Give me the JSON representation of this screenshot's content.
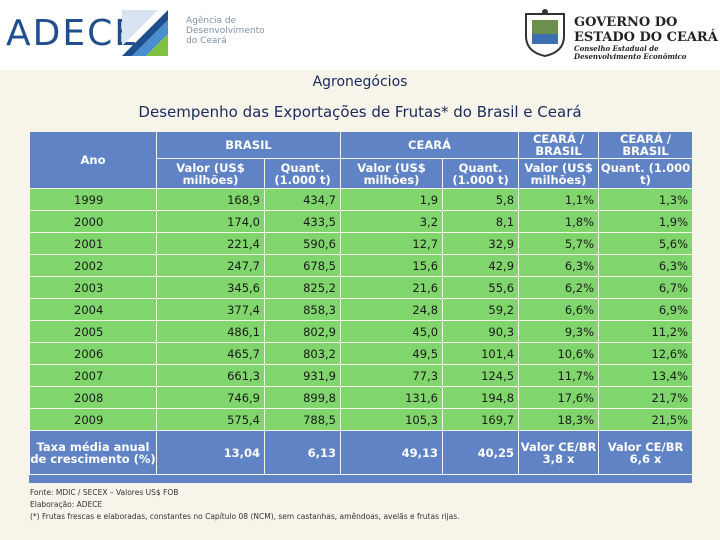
{
  "header": {
    "adece_logo": "ADECE",
    "adece_subtitle": [
      "Agência de",
      "Desenvolvimento",
      "do Ceará"
    ],
    "gov_title_line1": "GOVERNO DO",
    "gov_title_line2": "ESTADO DO CEARÁ",
    "gov_subtitle_line1": "Conselho Estadual de",
    "gov_subtitle_line2": "Desenvolvimento Econômico"
  },
  "section_title": "Agronegócios",
  "main_title": "Desempenho das Exportações de Frutas* do Brasil e Ceará",
  "table": {
    "col_ano": "Ano",
    "group_brasil": "BRASIL",
    "group_ceara": "CEARÁ",
    "group_ce_br_1": "CEARÁ / BRASIL",
    "group_ce_br_2": "CEARÁ / BRASIL",
    "sub_valor": "Valor (US$ milhões)",
    "sub_quant": "Quant. (1.000 t)",
    "rows": [
      {
        "ano": "1999",
        "br_valor": "168,9",
        "br_quant": "434,7",
        "ce_valor": "1,9",
        "ce_quant": "5,8",
        "r_valor": "1,1%",
        "r_quant": "1,3%"
      },
      {
        "ano": "2000",
        "br_valor": "174,0",
        "br_quant": "433,5",
        "ce_valor": "3,2",
        "ce_quant": "8,1",
        "r_valor": "1,8%",
        "r_quant": "1,9%"
      },
      {
        "ano": "2001",
        "br_valor": "221,4",
        "br_quant": "590,6",
        "ce_valor": "12,7",
        "ce_quant": "32,9",
        "r_valor": "5,7%",
        "r_quant": "5,6%"
      },
      {
        "ano": "2002",
        "br_valor": "247,7",
        "br_quant": "678,5",
        "ce_valor": "15,6",
        "ce_quant": "42,9",
        "r_valor": "6,3%",
        "r_quant": "6,3%"
      },
      {
        "ano": "2003",
        "br_valor": "345,6",
        "br_quant": "825,2",
        "ce_valor": "21,6",
        "ce_quant": "55,6",
        "r_valor": "6,2%",
        "r_quant": "6,7%"
      },
      {
        "ano": "2004",
        "br_valor": "377,4",
        "br_quant": "858,3",
        "ce_valor": "24,8",
        "ce_quant": "59,2",
        "r_valor": "6,6%",
        "r_quant": "6,9%"
      },
      {
        "ano": "2005",
        "br_valor": "486,1",
        "br_quant": "802,9",
        "ce_valor": "45,0",
        "ce_quant": "90,3",
        "r_valor": "9,3%",
        "r_quant": "11,2%"
      },
      {
        "ano": "2006",
        "br_valor": "465,7",
        "br_quant": "803,2",
        "ce_valor": "49,5",
        "ce_quant": "101,4",
        "r_valor": "10,6%",
        "r_quant": "12,6%"
      },
      {
        "ano": "2007",
        "br_valor": "661,3",
        "br_quant": "931,9",
        "ce_valor": "77,3",
        "ce_quant": "124,5",
        "r_valor": "11,7%",
        "r_quant": "13,4%"
      },
      {
        "ano": "2008",
        "br_valor": "746,9",
        "br_quant": "899,8",
        "ce_valor": "131,6",
        "ce_quant": "194,8",
        "r_valor": "17,6%",
        "r_quant": "21,7%"
      },
      {
        "ano": "2009",
        "br_valor": "575,4",
        "br_quant": "788,5",
        "ce_valor": "105,3",
        "ce_quant": "169,7",
        "r_valor": "18,3%",
        "r_quant": "21,5%"
      }
    ],
    "footer": {
      "label": "Taxa média anual de crescimento (%)",
      "br_valor": "13,04",
      "br_quant": "6,13",
      "ce_valor": "49,13",
      "ce_quant": "40,25",
      "ratio_valor": "Valor CE/BR 3,8 x",
      "ratio_quant": "Valor CE/BR 6,6 x"
    }
  },
  "notes": {
    "fonte": "Fonte: MDIC / SECEX – Valores US$ FOB",
    "elaboracao": "Elaboração: ADECE",
    "footnote": "(*) Frutas frescas e elaboradas, constantes no Capítulo 08 (NCM), sem castanhas, amêndoas, avelãs e frutas rijas."
  },
  "colors": {
    "header_blue": "#5f83c4",
    "row_green": "#80d56c",
    "background": "#f7f5e9",
    "title_navy": "#1a2a5c"
  }
}
